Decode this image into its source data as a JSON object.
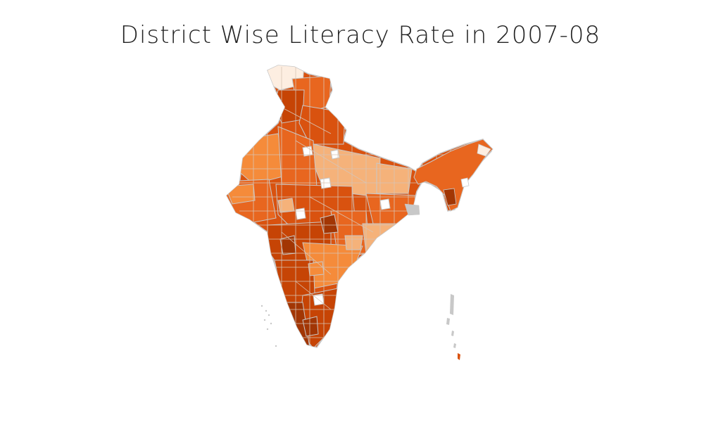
{
  "title": "District Wise Literacy Rate in 2007-08",
  "palette": {
    "very_low": "#fdeee1",
    "low": "#f5b27a",
    "mid_low": "#f58b3a",
    "mid": "#e8661f",
    "mid_high": "#d9520f",
    "high": "#c64405",
    "very_high": "#a23604",
    "no_data": "#ffffff",
    "border": "#c8c8c8",
    "islands": "#c8c8c8"
  }
}
